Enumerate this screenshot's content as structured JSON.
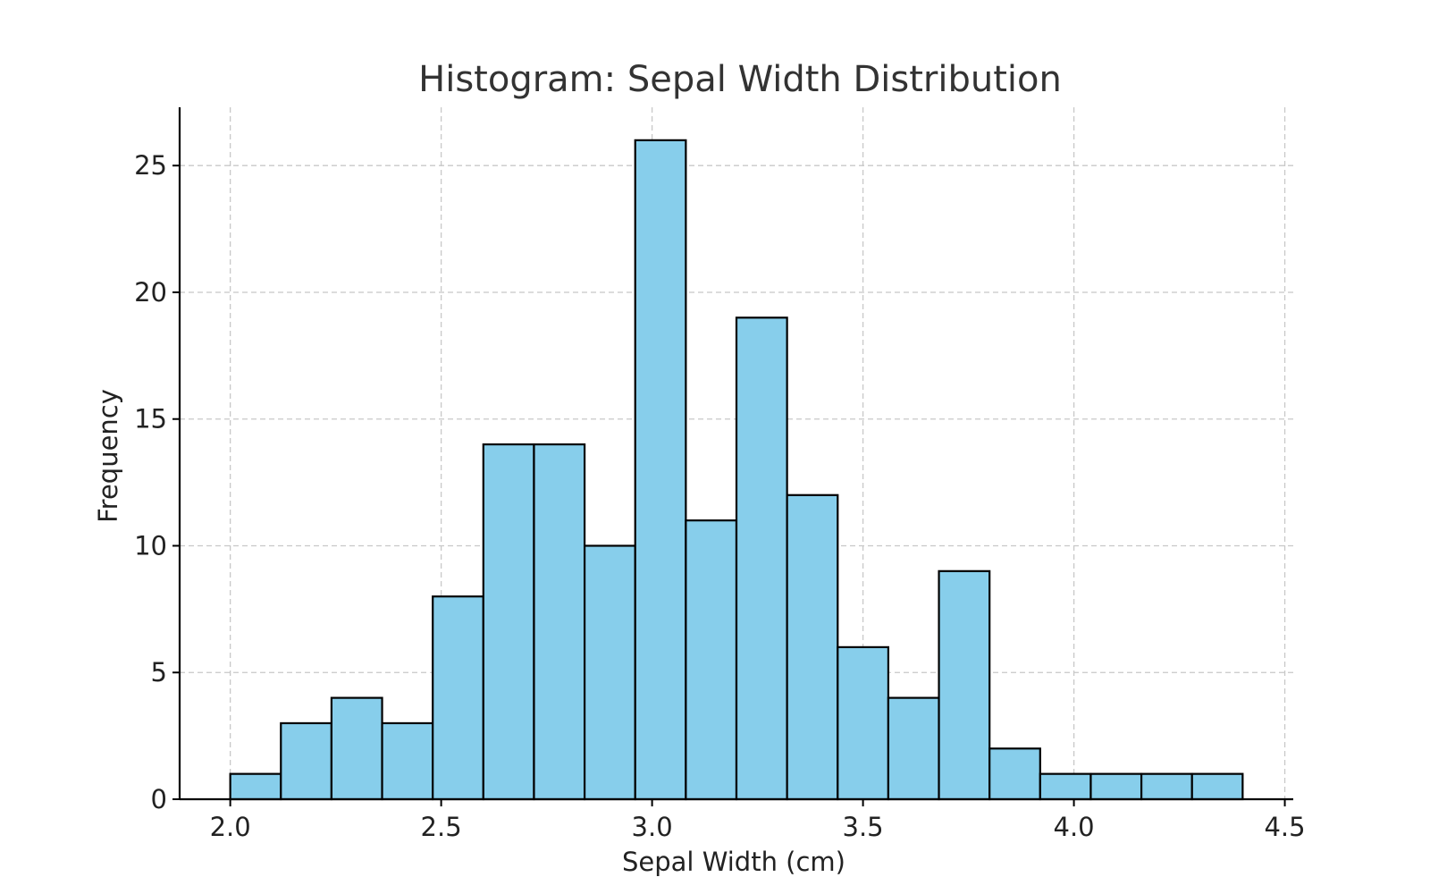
{
  "chart_data": {
    "type": "bar",
    "title": "Histogram: Sepal Width Distribution",
    "xlabel": "Sepal Width (cm)",
    "ylabel": "Frequency",
    "bin_edges": [
      2.0,
      2.12,
      2.24,
      2.36,
      2.48,
      2.6,
      2.72,
      2.84,
      2.96,
      3.08,
      3.2,
      3.32,
      3.44,
      3.56,
      3.68,
      3.8,
      3.92,
      4.04,
      4.16,
      4.28,
      4.4
    ],
    "values": [
      1,
      3,
      4,
      3,
      8,
      14,
      14,
      10,
      26,
      11,
      19,
      12,
      6,
      4,
      9,
      2,
      1,
      1,
      1,
      1
    ],
    "xlim": [
      1.88,
      4.52
    ],
    "ylim": [
      0,
      27.3
    ],
    "xticks": [
      2.0,
      2.5,
      3.0,
      3.5,
      4.0,
      4.5
    ],
    "xtick_labels": [
      "2.0",
      "2.5",
      "3.0",
      "3.5",
      "4.0",
      "4.5"
    ],
    "yticks": [
      0,
      5,
      10,
      15,
      20,
      25
    ],
    "ytick_labels": [
      "0",
      "5",
      "10",
      "15",
      "20",
      "25"
    ],
    "grid": true,
    "bar_color": "#87ceeb",
    "edge_color": "#000000"
  }
}
